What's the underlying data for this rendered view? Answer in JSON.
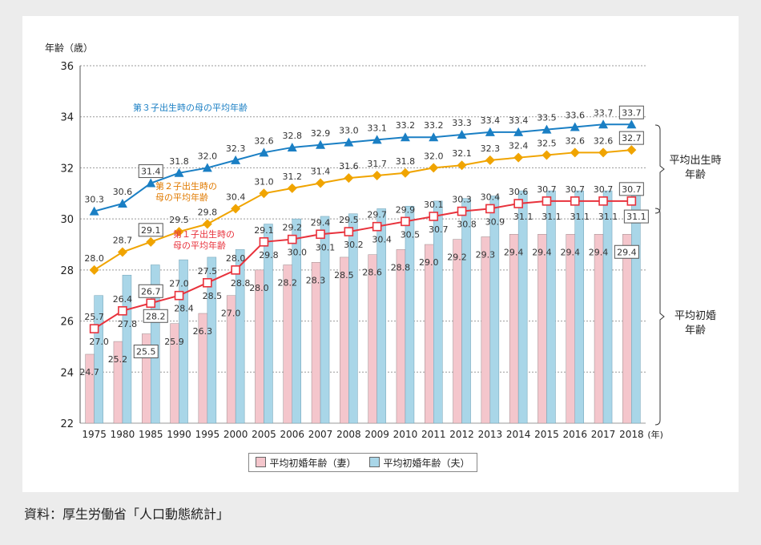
{
  "source": "資料：厚生労働省「人口動態統計」",
  "chart_data": {
    "type": "bar+line",
    "ylabel": "年齢（歳）",
    "x_unit": "(年)",
    "ylim": [
      22,
      36
    ],
    "yticks": [
      22,
      24,
      26,
      28,
      30,
      32,
      34,
      36
    ],
    "grid": true,
    "categories": [
      "1975",
      "1980",
      "1985",
      "1990",
      "1995",
      "2000",
      "2005",
      "2006",
      "2007",
      "2008",
      "2009",
      "2010",
      "2011",
      "2012",
      "2013",
      "2014",
      "2015",
      "2016",
      "2017",
      "2018"
    ],
    "series": [
      {
        "name": "平均初婚年齢（妻）",
        "kind": "bar",
        "color": "#f4c6cc",
        "values": [
          24.7,
          25.2,
          25.5,
          25.9,
          26.3,
          27.0,
          28.0,
          28.2,
          28.3,
          28.5,
          28.6,
          28.8,
          29.0,
          29.2,
          29.3,
          29.4,
          29.4,
          29.4,
          29.4,
          29.4
        ]
      },
      {
        "name": "平均初婚年齢（夫）",
        "kind": "bar",
        "color": "#a9d6e8",
        "values": [
          27.0,
          27.8,
          28.2,
          28.4,
          28.5,
          28.8,
          29.8,
          30.0,
          30.1,
          30.2,
          30.4,
          30.5,
          30.7,
          30.8,
          30.9,
          31.1,
          31.1,
          31.1,
          31.1,
          31.1
        ]
      },
      {
        "name": "第１子出生時の母の平均年齢",
        "kind": "line",
        "color": "#e8323c",
        "marker": "square",
        "values": [
          25.7,
          26.4,
          26.7,
          27.0,
          27.5,
          28.0,
          29.1,
          29.2,
          29.4,
          29.5,
          29.7,
          29.9,
          30.1,
          30.3,
          30.4,
          30.6,
          30.7,
          30.7,
          30.7,
          30.7
        ]
      },
      {
        "name": "第２子出生時の母の平均年齢",
        "kind": "line",
        "color": "#f0a400",
        "marker": "diamond",
        "values": [
          28.0,
          28.7,
          29.1,
          29.5,
          29.8,
          30.4,
          31.0,
          31.2,
          31.4,
          31.6,
          31.7,
          31.8,
          32.0,
          32.1,
          32.3,
          32.4,
          32.5,
          32.6,
          32.6,
          32.7
        ]
      },
      {
        "name": "第３子出生時の母の平均年齢",
        "kind": "line",
        "color": "#1a7fc4",
        "marker": "triangle",
        "values": [
          30.3,
          30.6,
          31.4,
          31.8,
          32.0,
          32.3,
          32.6,
          32.8,
          32.9,
          33.0,
          33.1,
          33.2,
          33.2,
          33.3,
          33.4,
          33.4,
          33.5,
          33.6,
          33.7,
          33.7
        ]
      }
    ],
    "annotations": {
      "third": "第３子出生時の母の平均年齢",
      "second_1": "第２子出生時の",
      "second_2": "母の平均年齢",
      "first_1": "第１子出生時の",
      "first_2": "母の平均年齢",
      "birth_group_1": "平均出生時",
      "birth_group_2": "年齢",
      "marriage_group_1": "平均初婚",
      "marriage_group_2": "年齢"
    },
    "legend": [
      "平均初婚年齢（妻）",
      "平均初婚年齢（夫）"
    ]
  }
}
